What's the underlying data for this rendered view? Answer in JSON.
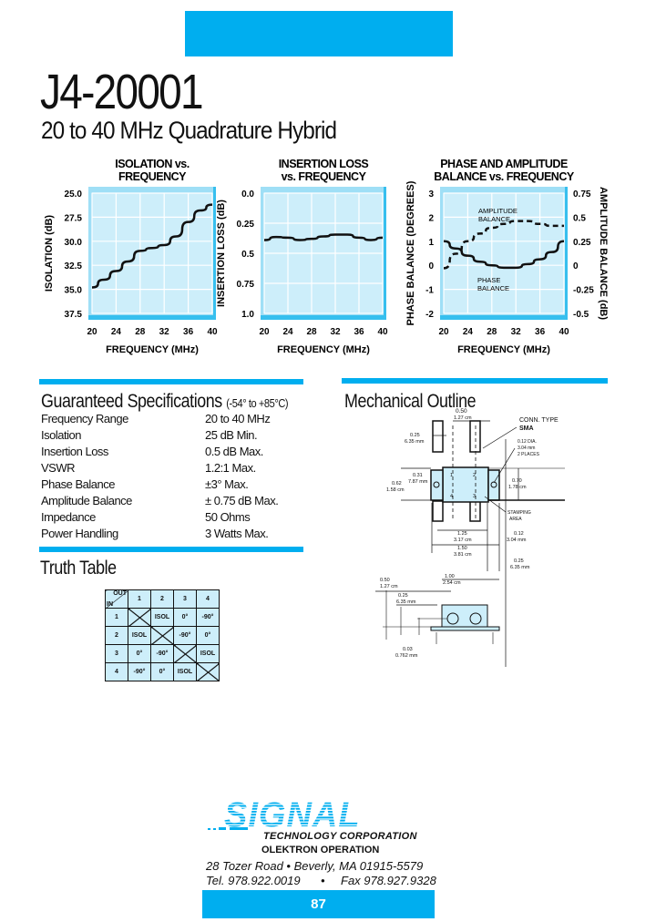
{
  "header": {
    "part_number": "J4-20001",
    "subtitle": "20 to 40 MHz Quadrature Hybrid"
  },
  "chart_data": [
    {
      "type": "line",
      "title": "ISOLATION vs. FREQUENCY",
      "xlabel": "FREQUENCY (MHz)",
      "ylabel": "ISOLATION (dB)",
      "xlim": [
        20,
        40
      ],
      "ylim": [
        37.5,
        25.0
      ],
      "xticks": [
        "20",
        "24",
        "28",
        "32",
        "36",
        "40"
      ],
      "yticks": [
        "25.0",
        "27.5",
        "30.0",
        "32.5",
        "35.0",
        "37.5"
      ],
      "grid": true,
      "x": [
        20,
        22,
        24,
        26,
        28,
        30,
        32,
        34,
        36,
        38,
        40
      ],
      "series": [
        {
          "values": [
            34.8,
            34.0,
            33.1,
            32.1,
            31.0,
            30.7,
            30.4,
            29.5,
            28.0,
            26.8,
            26.2
          ]
        }
      ]
    },
    {
      "type": "line",
      "title": "INSERTION LOSS vs. FREQUENCY",
      "xlabel": "FREQUENCY (MHz)",
      "ylabel": "INSERTION LOSS (dB)",
      "xlim": [
        20,
        40
      ],
      "ylim": [
        1.0,
        0.0
      ],
      "xticks": [
        "20",
        "24",
        "28",
        "32",
        "36",
        "40"
      ],
      "yticks": [
        "0.0",
        "0.25",
        "0.5",
        "0.75",
        "1.0"
      ],
      "grid": true,
      "x": [
        20,
        22,
        24,
        26,
        28,
        30,
        32,
        34,
        36,
        38,
        40
      ],
      "series": [
        {
          "values": [
            0.39,
            0.365,
            0.37,
            0.39,
            0.38,
            0.36,
            0.345,
            0.345,
            0.37,
            0.39,
            0.37
          ]
        }
      ]
    },
    {
      "type": "line",
      "title": "PHASE AND AMPLITUDE BALANCE vs. FREQUENCY",
      "xlabel": "FREQUENCY (MHz)",
      "ylabel": "PHASE BALANCE (DEGREES)",
      "ylabel_right": "AMPLITUDE BALANCE (dB)",
      "xlim": [
        20,
        40
      ],
      "ylim": [
        -2,
        3
      ],
      "ylim_right": [
        -0.5,
        0.75
      ],
      "xticks": [
        "20",
        "24",
        "28",
        "32",
        "36",
        "40"
      ],
      "yticks": [
        "3",
        "2",
        "1",
        "0",
        "-1",
        "-2"
      ],
      "yticks_right": [
        "0.75",
        "0.5",
        "0.25",
        "0",
        "-0.25",
        "-0.5"
      ],
      "grid": true,
      "x": [
        20,
        22,
        24,
        26,
        28,
        30,
        32,
        34,
        36,
        38,
        40
      ],
      "series": [
        {
          "name": "PHASE BALANCE",
          "axis": "left",
          "style": "solid",
          "values": [
            1.0,
            0.7,
            0.4,
            0.15,
            0.0,
            -0.1,
            -0.1,
            0.05,
            0.25,
            0.55,
            1.0
          ]
        },
        {
          "name": "AMPLITUDE BALANCE",
          "axis": "right",
          "style": "dashed",
          "values": [
            -0.03,
            0.12,
            0.25,
            0.33,
            0.39,
            0.43,
            0.46,
            0.46,
            0.43,
            0.41,
            0.41
          ]
        }
      ]
    }
  ],
  "specs": {
    "heading": "Guaranteed Specifications",
    "temp_range": "(-54° to +85°C)",
    "rows": [
      {
        "label": "Frequency Range",
        "value": "20 to 40 MHz"
      },
      {
        "label": "Isolation",
        "value": "25 dB Min."
      },
      {
        "label": "Insertion Loss",
        "value": "0.5 dB Max."
      },
      {
        "label": "VSWR",
        "value": "1.2:1 Max."
      },
      {
        "label": "Phase Balance",
        "value": "±3° Max."
      },
      {
        "label": "Amplitude Balance",
        "value": "± 0.75 dB Max."
      },
      {
        "label": "Impedance",
        "value": "50 Ohms"
      },
      {
        "label": "Power Handling",
        "value": "3 Watts Max."
      }
    ]
  },
  "truth_table": {
    "heading": "Truth Table",
    "corner_out": "OUT",
    "corner_in": "IN",
    "columns": [
      "1",
      "2",
      "3",
      "4"
    ],
    "rows": [
      {
        "in": "1",
        "cells": [
          "",
          "ISOL",
          "0°",
          "-90°"
        ]
      },
      {
        "in": "2",
        "cells": [
          "ISOL",
          "",
          "-90°",
          "0°"
        ]
      },
      {
        "in": "3",
        "cells": [
          "0°",
          "-90°",
          "",
          "ISOL"
        ]
      },
      {
        "in": "4",
        "cells": [
          "-90°",
          "0°",
          "ISOL",
          ""
        ]
      }
    ]
  },
  "mechanical": {
    "heading": "Mechanical Outline",
    "labels": {
      "conn": "CONN. TYPE",
      "conn2": "SMA",
      "hole1": "0.12 DIA.",
      "hole2": "3.04 mm",
      "hole3": "2 PLACES",
      "stamp1": "STAMPING",
      "stamp2": "AREA",
      "d050": "0.50",
      "d050m": "1.27 cm",
      "d025": "0.25",
      "d025m": "6.35 mm",
      "d031": "0.31",
      "d031m": "7.87 mm",
      "d062": "0.62",
      "d062m": "1.58 cm",
      "d070": "0.70",
      "d070m": "1.78 cm",
      "d125": "1.25",
      "d125m": "3.17 cm",
      "d012": "0.12",
      "d012m": "3.04 mm",
      "d150": "1.50",
      "d150m": "3.81 cm",
      "d025b": "0.25",
      "d025bm": "6.35 mm",
      "d100": "1.00",
      "d100m": "2.54 cm",
      "s050": "0.50",
      "s050m": "1.27 cm",
      "s025": "0.25",
      "s025m": "6.35 mm",
      "s003": "0.03",
      "s003m": "0.762 mm",
      "p1": "1",
      "p2": "2",
      "p3": "3",
      "p4": "4"
    }
  },
  "footer": {
    "logo_text": "SIGNAL",
    "company": "TECHNOLOGY CORPORATION",
    "division": "OLEKTRON OPERATION",
    "address": "28 Tozer Road • Beverly, MA 01915-5579",
    "tel": "Tel. 978.922.0019",
    "bullet": "•",
    "fax": "Fax 978.927.9328",
    "page_number": "87"
  },
  "colors": {
    "accent": "#00aeef",
    "plot_fill": "#cdeefa",
    "plot_frame": "#7fd3f2"
  }
}
